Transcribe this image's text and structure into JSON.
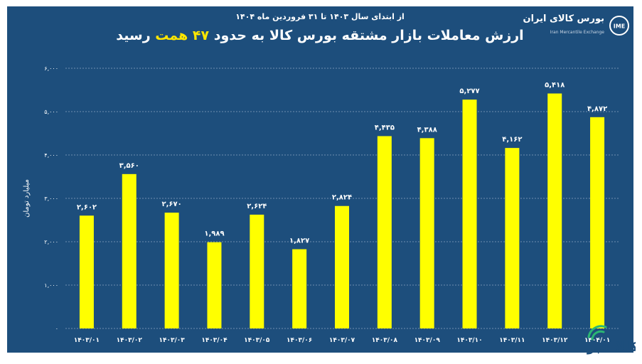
{
  "header": {
    "subtitle": "از ابتدای سال ۱۴۰۳ تا ۳۱ فروردین ماه ۱۴۰۴",
    "title_before": "ارزش معاملات بازار مشتقه بورس کالا به حدود",
    "title_highlight": "۴۷ همت",
    "title_after": "رسید"
  },
  "logo": {
    "name_fa": "بورس کالای ایران",
    "name_en": "Iran Mercantile Exchange",
    "icon_text": "IME"
  },
  "watermark": {
    "text": "کالا خبر"
  },
  "colors": {
    "background": "#1d4e7c",
    "bar": "#ffff00",
    "text": "#ffffff",
    "highlight": "#ffe600",
    "grid": "#6f8fb0"
  },
  "chart_data": {
    "type": "bar",
    "title": "ارزش معاملات بازار مشتقه بورس کالا به حدود ۴۷ همت رسید",
    "ylabel": "میلیارد تومان",
    "xlabel": "",
    "ylim": [
      0,
      6000
    ],
    "yticks": [
      0,
      1000,
      2000,
      3000,
      4000,
      5000,
      6000
    ],
    "ytick_labels": [
      "۰",
      "۱,۰۰۰",
      "۲,۰۰۰",
      "۳,۰۰۰",
      "۴,۰۰۰",
      "۵,۰۰۰",
      "۶,۰۰۰"
    ],
    "grid": true,
    "categories": [
      "۱۴۰۳/۰۱",
      "۱۴۰۳/۰۲",
      "۱۴۰۳/۰۳",
      "۱۴۰۳/۰۴",
      "۱۴۰۳/۰۵",
      "۱۴۰۳/۰۶",
      "۱۴۰۳/۰۷",
      "۱۴۰۳/۰۸",
      "۱۴۰۳/۰۹",
      "۱۴۰۳/۱۰",
      "۱۴۰۳/۱۱",
      "۱۴۰۳/۱۲",
      "۱۴۰۴/۰۱"
    ],
    "values": [
      2602,
      3560,
      2670,
      1989,
      2624,
      1827,
      2824,
      4435,
      4388,
      5277,
      4162,
      5418,
      4872
    ],
    "value_labels": [
      "۲,۶۰۲",
      "۳,۵۶۰",
      "۲,۶۷۰",
      "۱,۹۸۹",
      "۲,۶۲۴",
      "۱,۸۲۷",
      "۲,۸۲۴",
      "۴,۴۳۵",
      "۴,۳۸۸",
      "۵,۲۷۷",
      "۴,۱۶۲",
      "۵,۴۱۸",
      "۴,۸۷۲"
    ]
  }
}
